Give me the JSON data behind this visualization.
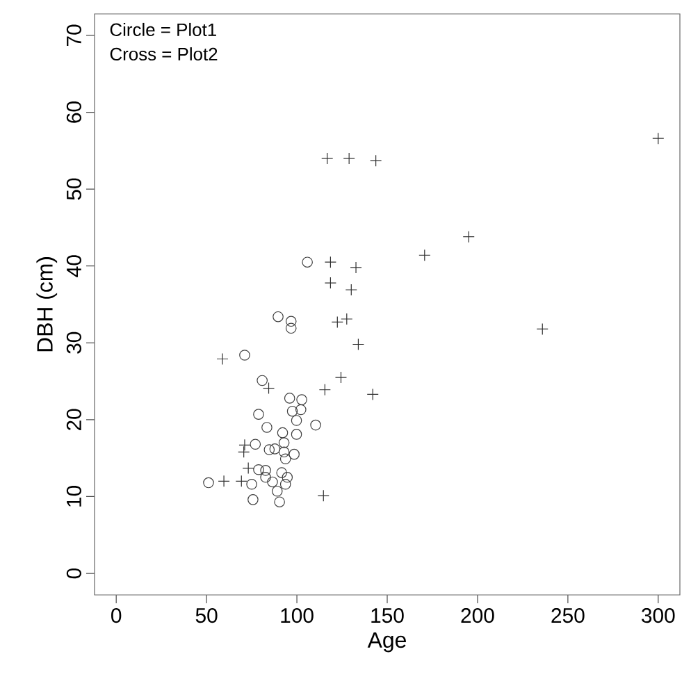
{
  "chart_data": {
    "type": "scatter",
    "xlabel": "Age",
    "ylabel": "DBH (cm)",
    "annotations": [
      "Circle = Plot1",
      "Cross = Plot2"
    ],
    "xlim": [
      -12,
      312
    ],
    "ylim": [
      -2.8,
      72.8
    ],
    "xticks": [
      0,
      50,
      100,
      150,
      200,
      250,
      300
    ],
    "yticks": [
      0,
      10,
      20,
      30,
      40,
      50,
      60,
      70
    ],
    "series": [
      {
        "marker": "circle",
        "color": "#404040",
        "x": [
          105.8,
          89.6,
          96.8,
          96.8,
          71.1,
          80.8,
          96.0,
          102.7,
          97.5,
          102.2,
          78.8,
          99.8,
          110.4,
          83.4,
          92.1,
          99.8,
          92.9,
          77.0,
          84.7,
          87.8,
          92.9,
          98.5,
          93.7,
          78.8,
          82.7,
          82.7,
          91.6,
          94.7,
          86.5,
          93.7,
          51.1,
          75.0,
          89.1,
          75.7,
          90.4
        ],
        "values": [
          40.5,
          33.4,
          32.8,
          31.9,
          28.4,
          25.1,
          22.8,
          22.6,
          21.1,
          21.3,
          20.7,
          19.9,
          19.3,
          19.0,
          18.3,
          18.1,
          17.0,
          16.8,
          16.1,
          16.2,
          15.8,
          15.5,
          14.9,
          13.5,
          13.4,
          12.5,
          13.1,
          12.5,
          11.9,
          11.6,
          11.8,
          11.6,
          10.7,
          9.6,
          9.3
        ]
      },
      {
        "marker": "cross",
        "color": "#303030",
        "x": [
          116.8,
          128.9,
          143.7,
          300,
          195.1,
          170.7,
          118.6,
          132.7,
          118.6,
          130.1,
          122.4,
          127.6,
          235.9,
          134,
          84.4,
          115.5,
          124.4,
          142,
          71.1,
          70.6,
          73.1,
          59.6,
          69.3,
          114.7,
          58.8
        ],
        "values": [
          54.0,
          54.0,
          53.7,
          56.6,
          43.8,
          41.4,
          40.5,
          39.8,
          37.8,
          36.9,
          32.7,
          33.1,
          31.8,
          29.8,
          24.1,
          23.9,
          25.5,
          23.3,
          16.7,
          15.8,
          13.7,
          12.0,
          12.0,
          10.1,
          27.9
        ]
      }
    ]
  }
}
